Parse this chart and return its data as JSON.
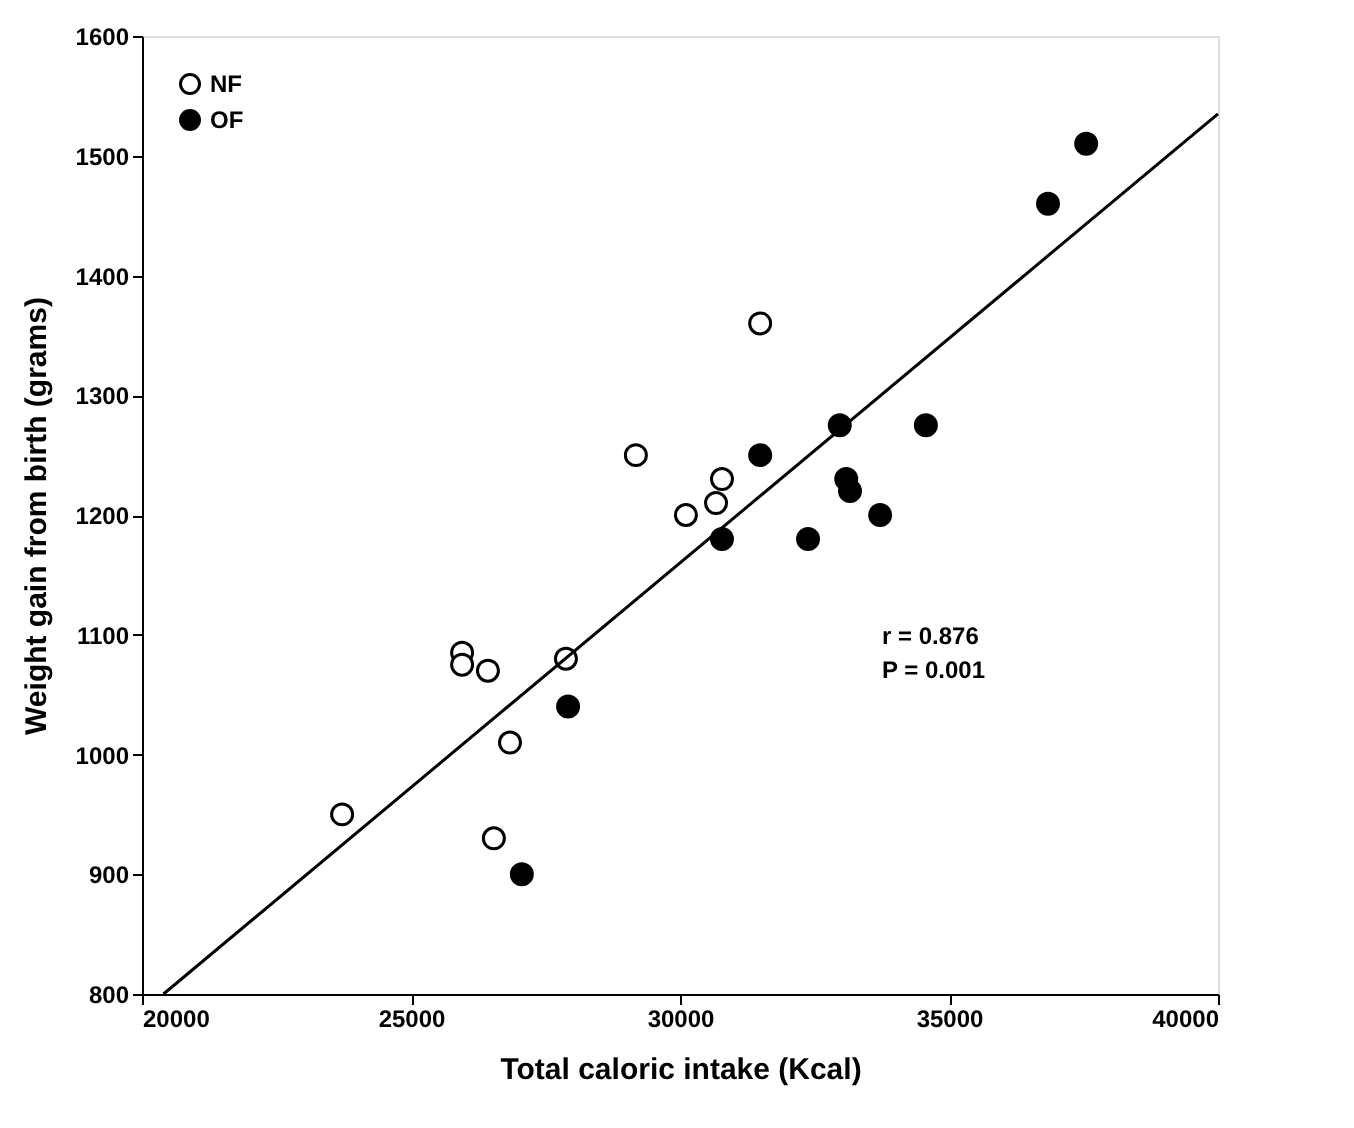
{
  "chart_data": {
    "type": "scatter",
    "xlabel": "Total caloric intake (Kcal)",
    "ylabel": "Weight gain from birth (grams)",
    "xlim": [
      20000,
      40000
    ],
    "xticks": [
      20000,
      25000,
      30000,
      35000,
      40000
    ],
    "ylim": [
      800,
      1600
    ],
    "yticks": [
      800,
      900,
      1000,
      1100,
      1200,
      1300,
      1400,
      1500,
      1600
    ],
    "grid": false,
    "legend": "top left",
    "series": [
      {
        "name": "NF",
        "color": "#ffffff",
        "marker": "circle",
        "x": [
          23720,
          26540,
          26840,
          25950,
          25950,
          26430,
          27880,
          29180,
          30110,
          30670,
          30780,
          31490
        ],
        "values": [
          950,
          930,
          1010,
          1085,
          1075,
          1070,
          1080,
          1250,
          1200,
          1210,
          1230,
          1360
        ]
      },
      {
        "name": "OF",
        "color": "#000000",
        "marker": "circle",
        "x": [
          27060,
          27920,
          30780,
          31490,
          32970,
          34570,
          33090,
          33160,
          33720,
          32380,
          36840,
          37550
        ],
        "values": [
          900,
          1040,
          1180,
          1250,
          1275,
          1275,
          1230,
          1220,
          1200,
          1180,
          1460,
          1510
        ]
      },
      {
        "type": "line",
        "color": "#000000",
        "marker": "none",
        "line_style": "solid",
        "x": [
          20400,
          40000
        ],
        "values": [
          800,
          1535
        ]
      }
    ],
    "annotations": [
      "r  =  0.876",
      "P  =  0.001"
    ]
  }
}
